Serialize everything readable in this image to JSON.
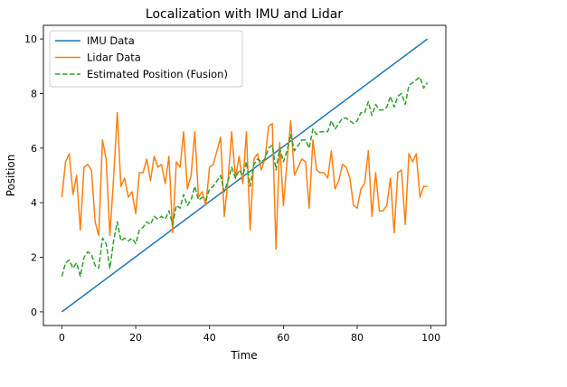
{
  "chart_data": {
    "type": "line",
    "title": "Localization with IMU and Lidar",
    "xlabel": "Time",
    "ylabel": "Position",
    "xlim": [
      -5,
      104
    ],
    "ylim": [
      -0.5,
      10.5
    ],
    "xticks": [
      0,
      20,
      40,
      60,
      80,
      100
    ],
    "yticks": [
      0,
      2,
      4,
      6,
      8,
      10
    ],
    "grid": false,
    "legend_position": "top-left",
    "series": [
      {
        "name": "IMU Data",
        "color": "#1f77b4",
        "style": "solid",
        "x": [
          0,
          99
        ],
        "y": [
          0,
          10
        ]
      },
      {
        "name": "Lidar Data",
        "color": "#ff7f0e",
        "style": "solid",
        "x": [
          0,
          1,
          2,
          3,
          4,
          5,
          6,
          7,
          8,
          9,
          10,
          11,
          12,
          13,
          14,
          15,
          16,
          17,
          18,
          19,
          20,
          21,
          22,
          23,
          24,
          25,
          26,
          27,
          28,
          29,
          30,
          31,
          32,
          33,
          34,
          35,
          36,
          37,
          38,
          39,
          40,
          41,
          42,
          43,
          44,
          45,
          46,
          47,
          48,
          49,
          50,
          51,
          52,
          53,
          54,
          55,
          56,
          57,
          58,
          59,
          60,
          61,
          62,
          63,
          64,
          65,
          66,
          67,
          68,
          69,
          70,
          71,
          72,
          73,
          74,
          75,
          76,
          77,
          78,
          79,
          80,
          81,
          82,
          83,
          84,
          85,
          86,
          87,
          88,
          89,
          90,
          91,
          92,
          93,
          94,
          95,
          96,
          97,
          98,
          99
        ],
        "y": [
          4.2,
          5.5,
          5.8,
          4.3,
          5.0,
          3.0,
          5.3,
          5.4,
          5.2,
          3.3,
          2.8,
          6.3,
          5.6,
          2.8,
          4.9,
          7.3,
          4.6,
          4.9,
          4.2,
          4.4,
          3.6,
          5.1,
          5.1,
          5.6,
          4.8,
          5.7,
          5.3,
          5.4,
          4.7,
          5.7,
          2.9,
          5.5,
          5.3,
          6.6,
          4.5,
          5.0,
          6.6,
          4.2,
          4.4,
          3.9,
          5.3,
          5.4,
          5.9,
          6.4,
          3.5,
          4.8,
          6.6,
          4.9,
          5.7,
          4.7,
          6.6,
          3.0,
          5.6,
          5.8,
          5.2,
          5.6,
          6.8,
          6.9,
          2.3,
          6.2,
          3.9,
          5.5,
          7.0,
          5.0,
          5.3,
          5.6,
          5.5,
          3.8,
          6.3,
          5.2,
          5.1,
          5.1,
          4.9,
          5.9,
          4.5,
          4.8,
          5.4,
          5.3,
          4.9,
          3.9,
          3.8,
          4.5,
          4.7,
          5.9,
          3.5,
          5.1,
          3.7,
          3.7,
          3.9,
          4.9,
          2.9,
          5.1,
          5.2,
          3.2,
          5.8,
          5.5,
          5.8,
          4.2,
          4.6,
          4.6
        ]
      },
      {
        "name": "Estimated Position (Fusion)",
        "color": "#2ca02c",
        "style": "dashed",
        "x": [
          0,
          1,
          2,
          3,
          4,
          5,
          6,
          7,
          8,
          9,
          10,
          11,
          12,
          13,
          14,
          15,
          16,
          17,
          18,
          19,
          20,
          21,
          22,
          23,
          24,
          25,
          26,
          27,
          28,
          29,
          30,
          31,
          32,
          33,
          34,
          35,
          36,
          37,
          38,
          39,
          40,
          41,
          42,
          43,
          44,
          45,
          46,
          47,
          48,
          49,
          50,
          51,
          52,
          53,
          54,
          55,
          56,
          57,
          58,
          59,
          60,
          61,
          62,
          63,
          64,
          65,
          66,
          67,
          68,
          69,
          70,
          71,
          72,
          73,
          74,
          75,
          76,
          77,
          78,
          79,
          80,
          81,
          82,
          83,
          84,
          85,
          86,
          87,
          88,
          89,
          90,
          91,
          92,
          93,
          94,
          95,
          96,
          97,
          98,
          99
        ],
        "y": [
          1.3,
          1.8,
          1.9,
          1.6,
          1.8,
          1.3,
          2.0,
          2.2,
          2.1,
          1.7,
          1.6,
          2.7,
          2.5,
          1.6,
          2.6,
          3.3,
          2.6,
          2.7,
          2.6,
          2.7,
          2.5,
          3.0,
          3.1,
          3.3,
          3.2,
          3.5,
          3.4,
          3.5,
          3.4,
          3.7,
          3.2,
          3.9,
          3.8,
          4.3,
          3.9,
          4.1,
          4.6,
          4.1,
          4.2,
          4.1,
          4.5,
          4.6,
          4.8,
          5.0,
          4.4,
          4.8,
          5.3,
          4.9,
          5.2,
          5.0,
          5.5,
          4.6,
          5.4,
          5.6,
          5.5,
          5.6,
          6.0,
          6.1,
          5.2,
          6.0,
          5.5,
          5.9,
          6.5,
          5.9,
          6.1,
          6.3,
          6.3,
          6.0,
          6.7,
          6.5,
          6.6,
          6.6,
          6.6,
          7.0,
          6.7,
          6.9,
          7.1,
          7.1,
          7.0,
          6.9,
          7.0,
          7.3,
          7.3,
          7.7,
          7.2,
          7.6,
          7.4,
          7.4,
          7.5,
          7.9,
          7.5,
          7.9,
          8.0,
          7.6,
          8.3,
          8.4,
          8.5,
          8.6,
          8.2,
          8.4
        ]
      }
    ]
  }
}
